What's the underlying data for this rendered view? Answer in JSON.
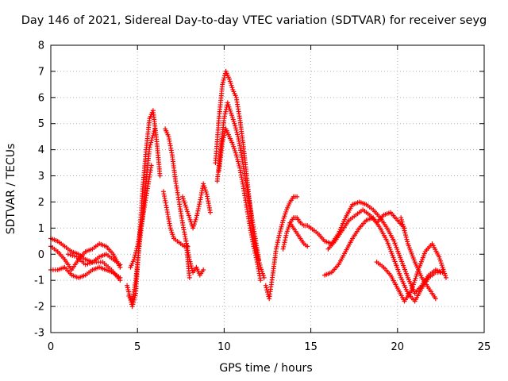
{
  "chart_data": {
    "type": "scatter",
    "title": "Day 146 of 2021, Sidereal Day-to-day VTEC variation (SDTVAR) for receiver seyg",
    "xlabel": "GPS time / hours",
    "ylabel": "SDTVAR / TECUs",
    "xlim": [
      0,
      25
    ],
    "ylim": [
      -3,
      8
    ],
    "xticks": [
      0,
      5,
      10,
      15,
      20,
      25
    ],
    "yticks": [
      -3,
      -2,
      -1,
      0,
      1,
      2,
      3,
      4,
      5,
      6,
      7,
      8
    ],
    "grid": true,
    "marker": "+",
    "color": "#ff0000",
    "series": [
      {
        "x": [
          0.0,
          0.4,
          0.8,
          1.2,
          1.6,
          2.0,
          2.4,
          2.8,
          3.2,
          3.6,
          4.0
        ],
        "y": [
          0.3,
          0.1,
          -0.2,
          -0.6,
          -0.2,
          0.1,
          0.2,
          0.4,
          0.3,
          0.0,
          -0.5
        ]
      },
      {
        "x": [
          0.0,
          0.4,
          0.8,
          1.2,
          1.6,
          2.0,
          2.4,
          2.8,
          3.2,
          3.6,
          4.0
        ],
        "y": [
          -0.6,
          -0.6,
          -0.5,
          -0.8,
          -0.9,
          -0.8,
          -0.6,
          -0.5,
          -0.6,
          -0.7,
          -0.9
        ]
      },
      {
        "x": [
          0.0,
          0.4,
          0.8,
          1.2,
          1.6,
          2.0,
          2.4,
          2.8,
          3.2,
          3.6,
          4.0
        ],
        "y": [
          0.6,
          0.5,
          0.3,
          0.1,
          0.0,
          -0.2,
          -0.3,
          -0.1,
          0.0,
          -0.2,
          -0.4
        ]
      },
      {
        "x": [
          1.0,
          1.5,
          2.0,
          2.5,
          3.0,
          3.5,
          4.0
        ],
        "y": [
          0.0,
          -0.1,
          -0.4,
          -0.3,
          -0.3,
          -0.6,
          -1.0
        ]
      },
      {
        "x": [
          4.4,
          4.7,
          4.9,
          5.1,
          5.3,
          5.5,
          5.7,
          5.9,
          6.1,
          6.3
        ],
        "y": [
          -1.2,
          -2.0,
          -1.5,
          0.5,
          2.5,
          4.0,
          5.2,
          5.5,
          4.4,
          3.0
        ]
      },
      {
        "x": [
          4.5,
          4.7,
          4.9,
          5.1,
          5.3,
          5.5,
          5.7,
          6.0
        ],
        "y": [
          -1.6,
          -1.8,
          -1.0,
          0.3,
          1.5,
          2.8,
          4.1,
          4.8
        ]
      },
      {
        "x": [
          4.6,
          4.8,
          5.0,
          5.2,
          5.4,
          5.6,
          5.8
        ],
        "y": [
          -0.5,
          -0.2,
          0.3,
          1.0,
          1.8,
          2.6,
          3.4
        ]
      },
      {
        "x": [
          6.6,
          6.8,
          7.0,
          7.2,
          7.4,
          7.6,
          7.8,
          8.0
        ],
        "y": [
          4.8,
          4.5,
          3.8,
          2.8,
          2.0,
          1.2,
          0.5,
          -0.9
        ]
      },
      {
        "x": [
          6.5,
          6.7,
          6.9,
          7.1,
          7.3,
          7.5,
          7.7,
          7.9
        ],
        "y": [
          2.4,
          1.7,
          1.0,
          0.6,
          0.5,
          0.4,
          0.3,
          0.3
        ]
      },
      {
        "x": [
          7.6,
          7.8,
          8.0,
          8.2,
          8.4,
          8.6,
          8.8,
          9.0,
          9.2
        ],
        "y": [
          2.2,
          1.8,
          1.4,
          1.0,
          1.4,
          2.0,
          2.7,
          2.3,
          1.6
        ]
      },
      {
        "x": [
          7.8,
          8.0,
          8.2,
          8.4,
          8.6,
          8.8
        ],
        "y": [
          0.5,
          -0.2,
          -0.7,
          -0.5,
          -0.8,
          -0.6
        ]
      },
      {
        "x": [
          9.5,
          9.7,
          9.9,
          10.1,
          10.3,
          10.5,
          10.7,
          10.9,
          11.1,
          11.3,
          11.5,
          11.7,
          11.9,
          12.1,
          12.3
        ],
        "y": [
          3.5,
          5.2,
          6.5,
          7.0,
          6.7,
          6.3,
          6.0,
          5.2,
          4.2,
          3.0,
          1.8,
          0.7,
          0.0,
          -0.5,
          -0.9
        ]
      },
      {
        "x": [
          9.6,
          9.8,
          10.0,
          10.2,
          10.4,
          10.6,
          10.8,
          11.0,
          11.2,
          11.4,
          11.6,
          11.8,
          12.0
        ],
        "y": [
          2.8,
          4.0,
          5.2,
          5.8,
          5.4,
          5.0,
          4.5,
          3.8,
          3.0,
          2.2,
          1.4,
          0.6,
          -0.2
        ]
      },
      {
        "x": [
          9.7,
          9.9,
          10.1,
          10.3,
          10.5,
          10.7,
          10.9,
          11.1,
          11.3,
          11.5,
          11.7,
          11.9,
          12.1
        ],
        "y": [
          3.2,
          4.3,
          4.8,
          4.5,
          4.2,
          3.8,
          3.3,
          2.6,
          1.8,
          1.0,
          0.3,
          -0.3,
          -1.0
        ]
      },
      {
        "x": [
          12.4,
          12.6,
          12.8,
          13.0,
          13.2,
          13.4,
          13.6,
          13.8,
          14.0,
          14.2
        ],
        "y": [
          -1.2,
          -1.7,
          -0.8,
          0.2,
          0.8,
          1.3,
          1.7,
          2.0,
          2.2,
          2.2
        ]
      },
      {
        "x": [
          13.4,
          13.6,
          13.8,
          14.0,
          14.2,
          14.4,
          14.6,
          14.8,
          15.0
        ],
        "y": [
          0.2,
          0.8,
          1.2,
          1.4,
          1.4,
          1.2,
          1.1,
          1.1,
          1.0
        ]
      },
      {
        "x": [
          13.8,
          14.0,
          14.2,
          14.4,
          14.6,
          14.8
        ],
        "y": [
          1.2,
          1.0,
          0.8,
          0.6,
          0.4,
          0.3
        ]
      },
      {
        "x": [
          15.0,
          15.4,
          15.8,
          16.2,
          16.6,
          17.0,
          17.4,
          17.8,
          18.2,
          18.6,
          19.0,
          19.4,
          19.8,
          20.2,
          20.6,
          21.0,
          21.4,
          21.8,
          22.2,
          22.6
        ],
        "y": [
          1.0,
          0.8,
          0.5,
          0.4,
          0.8,
          1.4,
          1.9,
          2.0,
          1.9,
          1.7,
          1.4,
          1.0,
          0.5,
          -0.2,
          -0.9,
          -1.5,
          -1.2,
          -0.8,
          -0.6,
          -0.7
        ]
      },
      {
        "x": [
          15.8,
          16.2,
          16.6,
          17.0,
          17.4,
          17.8,
          18.2,
          18.6,
          19.0,
          19.4,
          19.8,
          20.2,
          20.6,
          21.0,
          21.4,
          21.8,
          22.2,
          22.6
        ],
        "y": [
          -0.8,
          -0.7,
          -0.4,
          0.1,
          0.6,
          1.0,
          1.3,
          1.4,
          1.0,
          0.5,
          -0.2,
          -0.9,
          -1.5,
          -1.8,
          -1.3,
          -0.9,
          -0.7,
          -0.7
        ]
      },
      {
        "x": [
          16.0,
          16.4,
          16.8,
          17.2,
          17.6,
          18.0,
          18.4,
          18.8,
          19.2,
          19.6,
          20.0,
          20.4
        ],
        "y": [
          0.2,
          0.5,
          0.9,
          1.3,
          1.5,
          1.7,
          1.5,
          1.2,
          1.5,
          1.6,
          1.3,
          1.0
        ]
      },
      {
        "x": [
          18.8,
          19.2,
          19.6,
          20.0,
          20.4,
          20.8,
          21.2,
          21.6,
          22.0,
          22.4,
          22.8
        ],
        "y": [
          -0.3,
          -0.5,
          -0.8,
          -1.3,
          -1.8,
          -1.4,
          -0.6,
          0.1,
          0.4,
          -0.1,
          -0.9
        ]
      },
      {
        "x": [
          20.2,
          20.6,
          21.0,
          21.4,
          21.8,
          22.2
        ],
        "y": [
          1.4,
          0.4,
          -0.3,
          -0.9,
          -1.3,
          -1.7
        ]
      }
    ]
  }
}
